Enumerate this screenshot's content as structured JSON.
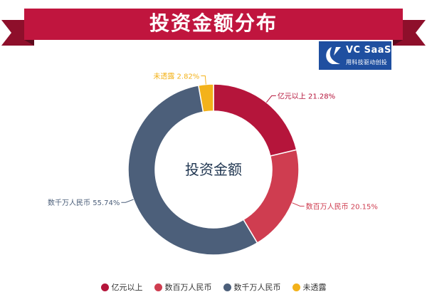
{
  "banner": {
    "title": "投资金额分布"
  },
  "logo": {
    "name": "VC SaaS",
    "tagline": "用科技驱动创投"
  },
  "chart_data": {
    "type": "pie",
    "style": "donut",
    "title": "投资金额分布",
    "center_label": "投资金额",
    "categories": [
      "亿元以上",
      "数百万人民币",
      "数千万人民币",
      "未透露"
    ],
    "values": [
      21.28,
      20.15,
      55.74,
      2.82
    ],
    "data_labels": [
      "亿元以上 21.28%",
      "数百万人民币 20.15%",
      "数千万人民币 55.74%",
      "未透露 2.82%"
    ],
    "colors": [
      "#b5153b",
      "#cf3d50",
      "#4c5f7a",
      "#f3b21a"
    ],
    "legend": {
      "position": "bottom",
      "entries": [
        "亿元以上",
        "数百万人民币",
        "数千万人民币",
        "未透露"
      ]
    }
  }
}
